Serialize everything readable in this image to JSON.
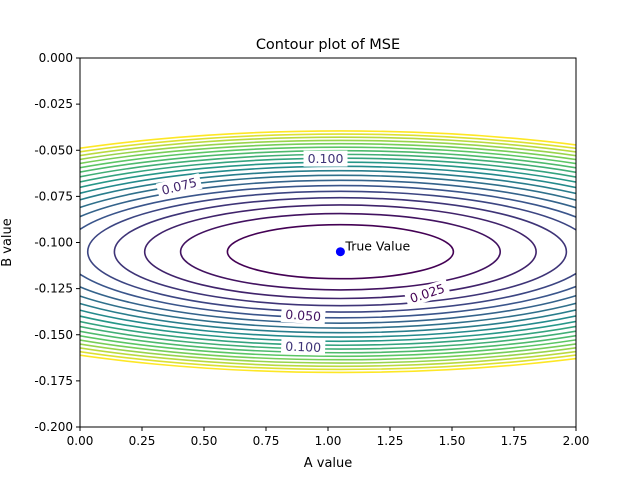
{
  "chart_data": {
    "type": "contour",
    "title": "Contour plot of MSE",
    "xlabel": "A value",
    "ylabel": "B value",
    "xlim": [
      0.0,
      2.0
    ],
    "ylim": [
      -0.2,
      0.0
    ],
    "xticks": [
      "0.00",
      "0.25",
      "0.50",
      "0.75",
      "1.00",
      "1.25",
      "1.50",
      "1.75",
      "2.00"
    ],
    "yticks": [
      "0.000",
      "-0.025",
      "-0.050",
      "-0.075",
      "-0.100",
      "-0.125",
      "-0.150",
      "-0.175",
      "-0.200"
    ],
    "grid": false,
    "true_point": {
      "x": 1.05,
      "y": -0.105,
      "label": "True Value",
      "color": "#0000ff"
    },
    "contour_center": {
      "x": 1.05,
      "y": -0.105
    },
    "contour_levels": [
      0.025,
      0.05,
      0.075,
      0.1,
      0.125,
      0.15,
      0.175,
      0.2,
      0.225,
      0.25,
      0.275,
      0.3,
      0.325,
      0.35,
      0.375,
      0.4,
      0.425,
      0.45,
      0.475,
      0.5
    ],
    "contour_labels": [
      {
        "text": "0.100",
        "level": 0.1,
        "x": 0.99,
        "y": -0.0545,
        "angle": 0
      },
      {
        "text": "0.075",
        "level": 0.075,
        "x": 0.4,
        "y": -0.0695,
        "angle": -14
      },
      {
        "text": "0.025",
        "level": 0.025,
        "x": 1.4,
        "y": -0.1275,
        "angle": -18
      },
      {
        "text": "0.050",
        "level": 0.05,
        "x": 0.9,
        "y": -0.1395,
        "angle": 4
      },
      {
        "text": "0.100",
        "level": 0.1,
        "x": 0.9,
        "y": -0.1565,
        "angle": 2
      }
    ],
    "colormap": "viridis"
  }
}
